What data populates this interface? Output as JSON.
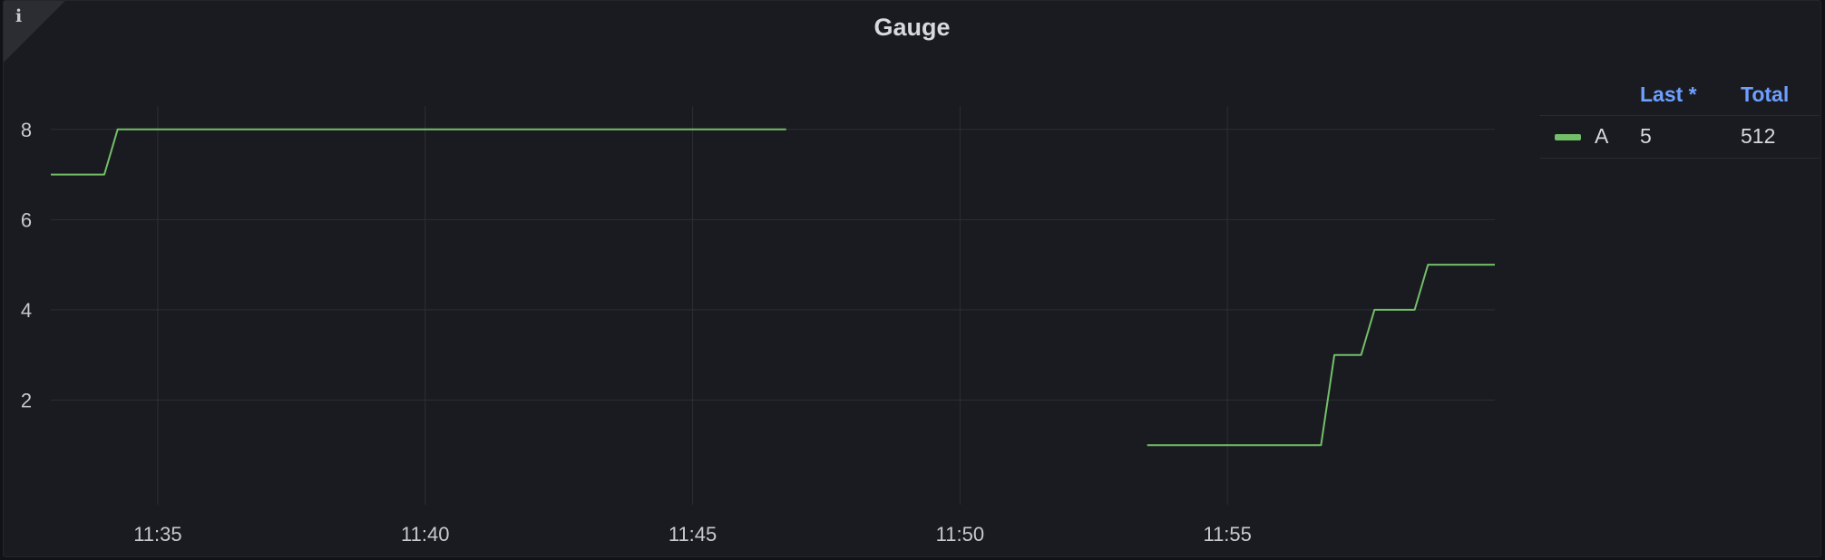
{
  "panel": {
    "title": "Gauge",
    "info_icon": "info-icon"
  },
  "legend": {
    "headers": {
      "last": "Last *",
      "total": "Total"
    },
    "rows": [
      {
        "name": "A",
        "last": "5",
        "total": "512",
        "color": "#73bf69"
      }
    ]
  },
  "chart_data": {
    "type": "line",
    "title": "Gauge",
    "xlabel": "",
    "ylabel": "",
    "x_ticks": [
      "11:35",
      "11:40",
      "11:45",
      "11:50",
      "11:55"
    ],
    "y_ticks": [
      2,
      4,
      6,
      8
    ],
    "xlim": [
      "11:33",
      "11:60"
    ],
    "ylim": [
      0,
      9
    ],
    "grid": true,
    "legend_placement": "right",
    "series": [
      {
        "name": "A",
        "color": "#73bf69",
        "segments": [
          [
            {
              "x": "11:33:00",
              "y": 7
            },
            {
              "x": "11:34:00",
              "y": 7
            },
            {
              "x": "11:34:15",
              "y": 8
            },
            {
              "x": "11:46:45",
              "y": 8
            }
          ],
          [
            {
              "x": "11:53:30",
              "y": 1
            },
            {
              "x": "11:56:45",
              "y": 1
            },
            {
              "x": "11:57:00",
              "y": 3
            },
            {
              "x": "11:57:30",
              "y": 3
            },
            {
              "x": "11:57:45",
              "y": 4
            },
            {
              "x": "11:58:30",
              "y": 4
            },
            {
              "x": "11:58:45",
              "y": 5
            },
            {
              "x": "11:60:00",
              "y": 5
            }
          ]
        ]
      }
    ]
  }
}
